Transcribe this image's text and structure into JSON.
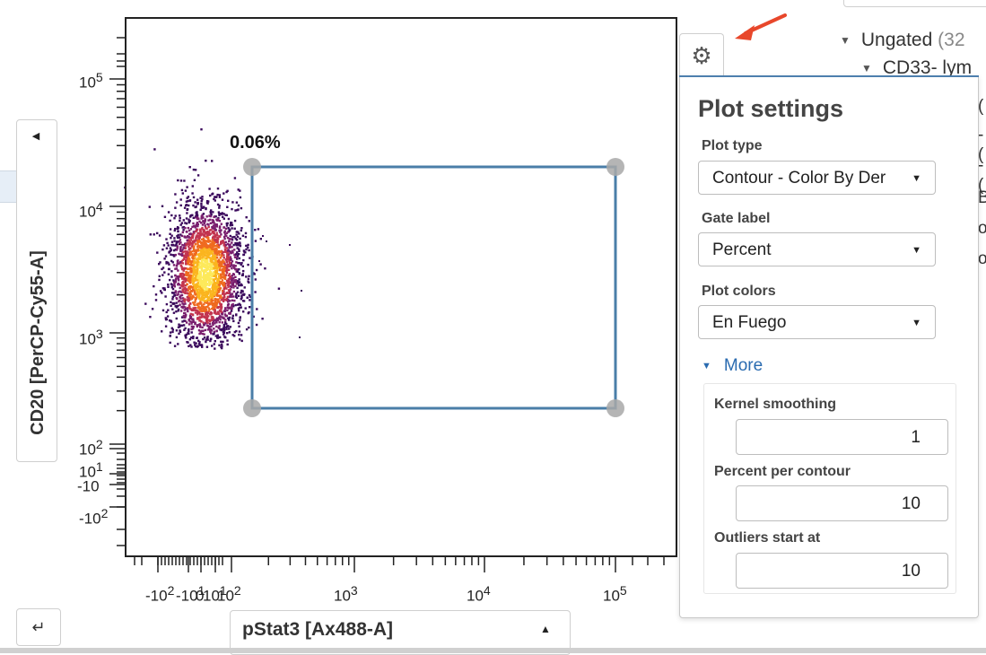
{
  "plot": {
    "y_axis_label": "CD20 [PerCP-Cy55-A]",
    "x_axis_label": "pStat3 [Ax488-A]",
    "gate_percent": "0.06%",
    "y_ticks": [
      {
        "base": "10",
        "exp": "5"
      },
      {
        "base": "10",
        "exp": "4"
      },
      {
        "base": "10",
        "exp": "3"
      },
      {
        "base": "10",
        "exp": "2"
      },
      {
        "base": "10",
        "exp": "1"
      },
      {
        "base": "-10",
        "exp": ""
      },
      {
        "base": "-10",
        "exp": "2"
      }
    ],
    "x_ticks": [
      {
        "base": "-10",
        "exp": "2"
      },
      {
        "base": "-10",
        "exp": "1"
      },
      {
        "base": "0",
        "exp": ""
      },
      {
        "base": "10",
        "exp": "1"
      },
      {
        "base": "10",
        "exp": "2"
      },
      {
        "base": "10",
        "exp": "3"
      },
      {
        "base": "10",
        "exp": "4"
      },
      {
        "base": "10",
        "exp": "5"
      }
    ],
    "density_colors": [
      "#3b0a5c",
      "#7a1f6e",
      "#c2344f",
      "#ef6a1f",
      "#fbb51f",
      "#fde95a"
    ]
  },
  "tree": {
    "ungated_label": "Ungated",
    "ungated_count": "(32",
    "child_label": "CD33- lym",
    "fragments": [
      "(",
      "-(",
      "-(",
      "B",
      "or",
      "o"
    ]
  },
  "icons": {
    "gear": "gear-icon",
    "arrow": "red-arrow-icon",
    "corner": "corner-arrow-icon"
  },
  "settings": {
    "title": "Plot settings",
    "plot_type_label": "Plot type",
    "plot_type_value": "Contour - Color By Der",
    "gate_label_label": "Gate label",
    "gate_label_value": "Percent",
    "plot_colors_label": "Plot colors",
    "plot_colors_value": "En Fuego",
    "more_label": "More",
    "kernel_label": "Kernel smoothing",
    "kernel_value": "1",
    "percent_label": "Percent per contour",
    "percent_value": "10",
    "outliers_label": "Outliers start at",
    "outliers_value": "10"
  },
  "colors": {
    "gate_stroke": "#4a7ea8",
    "link_blue": "#2a6bb0",
    "arrow_red": "#e8472b"
  }
}
